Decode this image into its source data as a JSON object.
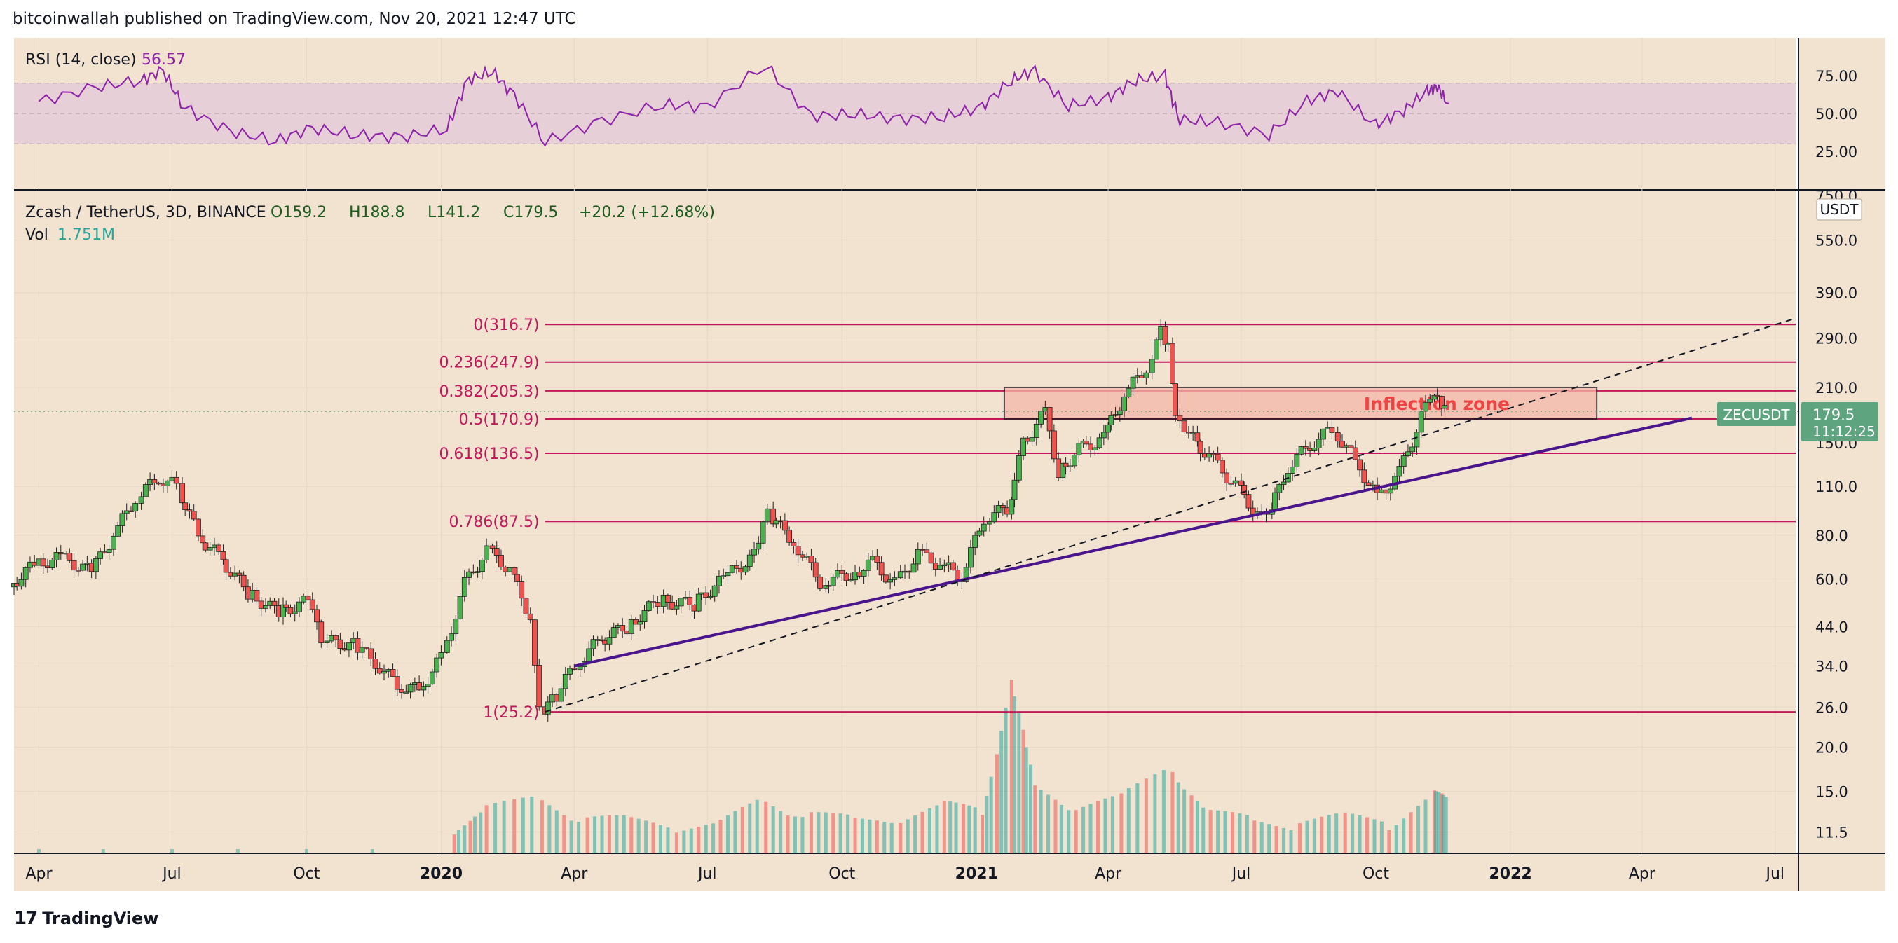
{
  "header": {
    "publish_line": "bitcoinwallah published on TradingView.com, Nov 20, 2021 12:47 UTC"
  },
  "brand": {
    "name": "TradingView"
  },
  "colors": {
    "bg": "#f2e2d0",
    "rsi_band": "#e6cfd6",
    "rsi_line": "#8e24aa",
    "fib": "#c2185b",
    "up": "#26a69a",
    "down": "#ef5350",
    "candle_up": "#4caf50",
    "trend": "#4a148c",
    "zone_fill": "#f4b8aa",
    "zone_text": "#ef4444",
    "tag": "#5ea47e"
  },
  "rsi_panel": {
    "label": "RSI (14, close)",
    "value": "56.57",
    "axis_ticks": [
      75,
      50,
      25
    ],
    "axis_labels": [
      "75.00",
      "50.00",
      "25.00"
    ],
    "band_upper": 70,
    "band_lower": 30,
    "partial_label": "750.0"
  },
  "price_panel": {
    "symbol_line": "Zcash / TetherUS, 3D, BINANCE",
    "open": "O159.2",
    "high": "H188.8",
    "low": "L141.2",
    "close": "C179.5",
    "change": "+20.2 (+12.68%)",
    "vol_label": "Vol",
    "vol_value": "1.751M",
    "currency": "USDT",
    "ticker_tag": "ZECUSDT",
    "last_price": "179.5",
    "countdown": "11:12:25",
    "partial_label": "150.0"
  },
  "time_axis": [
    "Apr",
    "Jul",
    "Oct",
    "2020",
    "Apr",
    "Jul",
    "Oct",
    "2021",
    "Apr",
    "Jul",
    "Oct",
    "2022",
    "Apr",
    "Jul"
  ],
  "chart_data": {
    "type": "candlestick",
    "title": "Zcash / TetherUS, 3D, BINANCE",
    "x_range": [
      "2019-03-15",
      "2022-07-15"
    ],
    "y_scale": "log",
    "ylim": [
      10,
      760
    ],
    "price_ticks": [
      550,
      390,
      290,
      210,
      110,
      80,
      60,
      44,
      34,
      26,
      20,
      15,
      11.5
    ],
    "price_tick_labels": [
      "550.0",
      "390.0",
      "290.0",
      "210.0",
      "110.0",
      "80.0",
      "60.0",
      "44.0",
      "34.0",
      "26.0",
      "20.0",
      "15.0",
      "11.5"
    ],
    "fib_levels": [
      {
        "label": "0(316.7)",
        "ratio": 0,
        "price": 316.7
      },
      {
        "label": "0.236(247.9)",
        "ratio": 0.236,
        "price": 247.9
      },
      {
        "label": "0.382(205.3)",
        "ratio": 0.382,
        "price": 205.3
      },
      {
        "label": "0.5(170.9)",
        "ratio": 0.5,
        "price": 170.9
      },
      {
        "label": "0.618(136.5)",
        "ratio": 0.618,
        "price": 136.5
      },
      {
        "label": "0.786(87.5)",
        "ratio": 0.786,
        "price": 87.5
      },
      {
        "label": "1(25.2)",
        "ratio": 1,
        "price": 25.2
      }
    ],
    "fib_range": [
      "2020-03-12",
      "2022-07-15"
    ],
    "zone": {
      "label": "Inflection zone",
      "from": "2021-01-20",
      "to": "2022-03-01",
      "low": 170.9,
      "high": 210
    },
    "trendline_solid": {
      "from": [
        "2020-04-01",
        34
      ],
      "to": [
        "2022-05-05",
        172
      ]
    },
    "trendline_dashed": {
      "from": [
        "2020-03-12",
        25.2
      ],
      "to": [
        "2022-07-15",
        330
      ]
    },
    "price_series": [
      [
        "2019-03-15",
        57
      ],
      [
        "2019-04-01",
        66
      ],
      [
        "2019-04-20",
        69
      ],
      [
        "2019-05-10",
        63
      ],
      [
        "2019-05-25",
        80
      ],
      [
        "2019-06-10",
        102
      ],
      [
        "2019-06-25",
        117
      ],
      [
        "2019-07-08",
        110
      ],
      [
        "2019-07-22",
        80
      ],
      [
        "2019-08-05",
        70
      ],
      [
        "2019-08-25",
        55
      ],
      [
        "2019-09-15",
        48
      ],
      [
        "2019-10-05",
        52
      ],
      [
        "2019-10-15",
        40
      ],
      [
        "2019-11-05",
        39
      ],
      [
        "2019-11-20",
        35
      ],
      [
        "2019-12-05",
        30
      ],
      [
        "2019-12-20",
        29
      ],
      [
        "2020-01-05",
        36
      ],
      [
        "2020-01-20",
        58
      ],
      [
        "2020-02-05",
        72
      ],
      [
        "2020-02-20",
        64
      ],
      [
        "2020-03-05",
        47
      ],
      [
        "2020-03-12",
        25
      ],
      [
        "2020-03-20",
        27
      ],
      [
        "2020-04-05",
        34
      ],
      [
        "2020-04-20",
        40
      ],
      [
        "2020-05-10",
        44
      ],
      [
        "2020-06-01",
        52
      ],
      [
        "2020-06-25",
        51
      ],
      [
        "2020-07-15",
        60
      ],
      [
        "2020-08-05",
        70
      ],
      [
        "2020-08-15",
        92
      ],
      [
        "2020-09-01",
        77
      ],
      [
        "2020-09-20",
        59
      ],
      [
        "2020-10-10",
        62
      ],
      [
        "2020-10-25",
        67
      ],
      [
        "2020-11-10",
        58
      ],
      [
        "2020-11-25",
        71
      ],
      [
        "2020-12-10",
        66
      ],
      [
        "2020-12-25",
        61
      ],
      [
        "2021-01-10",
        90
      ],
      [
        "2021-01-25",
        95
      ],
      [
        "2021-02-05",
        145
      ],
      [
        "2021-02-20",
        180
      ],
      [
        "2021-03-01",
        120
      ],
      [
        "2021-03-15",
        140
      ],
      [
        "2021-04-01",
        150
      ],
      [
        "2021-04-15",
        200
      ],
      [
        "2021-05-01",
        240
      ],
      [
        "2021-05-10",
        300
      ],
      [
        "2021-05-15",
        280
      ],
      [
        "2021-05-20",
        180
      ],
      [
        "2021-06-01",
        150
      ],
      [
        "2021-06-15",
        130
      ],
      [
        "2021-07-01",
        110
      ],
      [
        "2021-07-15",
        92
      ],
      [
        "2021-07-22",
        88
      ],
      [
        "2021-08-05",
        125
      ],
      [
        "2021-08-20",
        145
      ],
      [
        "2021-09-05",
        160
      ],
      [
        "2021-09-20",
        130
      ],
      [
        "2021-10-05",
        102
      ],
      [
        "2021-10-20",
        120
      ],
      [
        "2021-11-01",
        160
      ],
      [
        "2021-11-10",
        200
      ],
      [
        "2021-11-15",
        190
      ],
      [
        "2021-11-20",
        179.5
      ]
    ],
    "rsi_series": [
      [
        "2019-04-01",
        58
      ],
      [
        "2019-05-10",
        67
      ],
      [
        "2019-06-10",
        72
      ],
      [
        "2019-06-25",
        78
      ],
      [
        "2019-07-10",
        54
      ],
      [
        "2019-08-10",
        38
      ],
      [
        "2019-09-10",
        32
      ],
      [
        "2019-10-05",
        40
      ],
      [
        "2019-11-05",
        36
      ],
      [
        "2019-12-05",
        34
      ],
      [
        "2020-01-05",
        40
      ],
      [
        "2020-01-20",
        72
      ],
      [
        "2020-02-05",
        78
      ],
      [
        "2020-02-20",
        62
      ],
      [
        "2020-03-12",
        31
      ],
      [
        "2020-04-20",
        45
      ],
      [
        "2020-06-01",
        56
      ],
      [
        "2020-07-01",
        54
      ],
      [
        "2020-08-10",
        82
      ],
      [
        "2020-09-10",
        48
      ],
      [
        "2020-10-10",
        50
      ],
      [
        "2020-11-10",
        46
      ],
      [
        "2020-12-10",
        48
      ],
      [
        "2021-01-05",
        54
      ],
      [
        "2021-01-25",
        72
      ],
      [
        "2021-02-10",
        78
      ],
      [
        "2021-03-05",
        55
      ],
      [
        "2021-04-01",
        60
      ],
      [
        "2021-04-20",
        72
      ],
      [
        "2021-05-10",
        75
      ],
      [
        "2021-05-20",
        46
      ],
      [
        "2021-06-15",
        44
      ],
      [
        "2021-07-20",
        36
      ],
      [
        "2021-08-15",
        58
      ],
      [
        "2021-09-05",
        65
      ],
      [
        "2021-10-01",
        42
      ],
      [
        "2021-10-20",
        52
      ],
      [
        "2021-11-05",
        64
      ],
      [
        "2021-11-12",
        68
      ],
      [
        "2021-11-20",
        56.57
      ]
    ],
    "volume_series": [
      [
        "2020-01-10",
        5
      ],
      [
        "2020-02-01",
        9
      ],
      [
        "2020-03-10",
        12
      ],
      [
        "2020-04-10",
        7
      ],
      [
        "2020-05-10",
        6
      ],
      [
        "2020-06-10",
        5
      ],
      [
        "2020-07-10",
        5
      ],
      [
        "2020-08-10",
        12
      ],
      [
        "2020-09-10",
        8
      ],
      [
        "2020-10-10",
        6
      ],
      [
        "2020-11-10",
        7
      ],
      [
        "2020-12-10",
        10
      ],
      [
        "2021-01-05",
        9
      ],
      [
        "2021-01-25",
        43
      ],
      [
        "2021-02-10",
        15
      ],
      [
        "2021-03-10",
        10
      ],
      [
        "2021-04-10",
        12
      ],
      [
        "2021-05-15",
        21
      ],
      [
        "2021-06-10",
        8
      ],
      [
        "2021-07-10",
        6
      ],
      [
        "2021-08-10",
        6
      ],
      [
        "2021-09-10",
        7
      ],
      [
        "2021-10-10",
        6
      ],
      [
        "2021-11-10",
        13
      ],
      [
        "2021-11-20",
        11
      ]
    ]
  }
}
